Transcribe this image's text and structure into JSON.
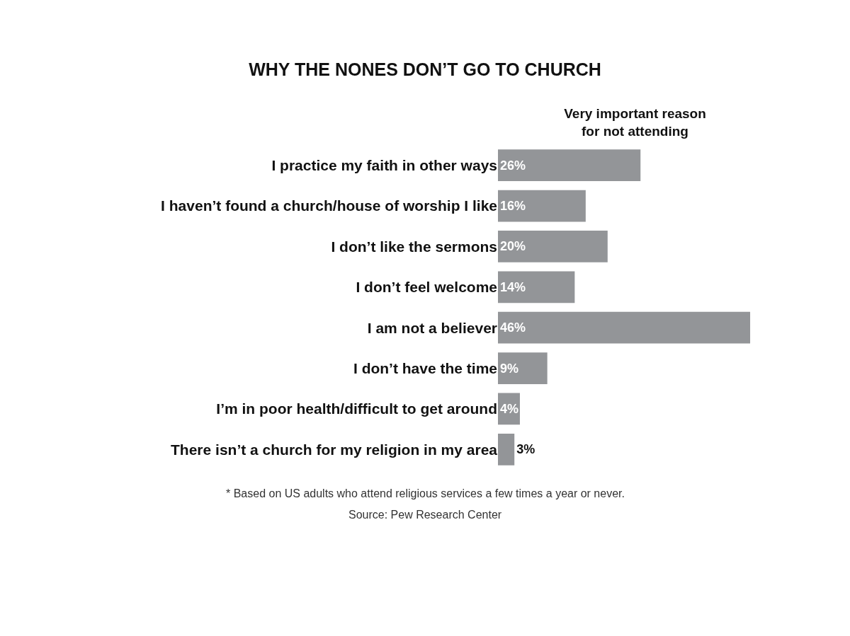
{
  "chart_data": {
    "type": "bar",
    "orientation": "horizontal",
    "title": "WHY THE NONES DON’T GO TO CHURCH",
    "xlabel": "Very important reason\nfor not attending",
    "categories": [
      "I practice my faith in other ways",
      "I haven’t found a church/house of worship I like",
      "I don’t like the sermons",
      "I don’t feel welcome",
      "I am not a believer",
      "I don’t have the time",
      "I’m in poor health/difficult to get around",
      "There isn’t a church for my religion in my area"
    ],
    "values": [
      26,
      16,
      20,
      14,
      46,
      9,
      4,
      3
    ],
    "value_labels": [
      "26%",
      "16%",
      "20%",
      "14%",
      "46%",
      "9%",
      "4%",
      "3%"
    ],
    "color": "#939598",
    "annotations": [
      "* Based on US adults who attend religious services a few times a year or never.",
      "Source: Pew Research Center"
    ]
  }
}
